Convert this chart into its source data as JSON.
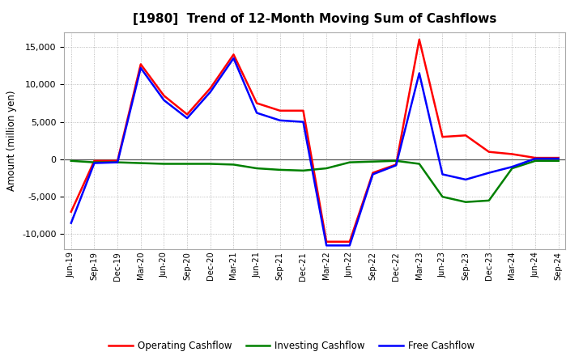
{
  "title": "[1980]  Trend of 12-Month Moving Sum of Cashflows",
  "ylabel": "Amount (million yen)",
  "background_color": "#ffffff",
  "grid_color": "#aaaaaa",
  "ylim": [
    -12000,
    17000
  ],
  "yticks": [
    -10000,
    -5000,
    0,
    5000,
    10000,
    15000
  ],
  "x_labels": [
    "Jun-19",
    "Sep-19",
    "Dec-19",
    "Mar-20",
    "Jun-20",
    "Sep-20",
    "Dec-20",
    "Mar-21",
    "Jun-21",
    "Sep-21",
    "Dec-21",
    "Mar-22",
    "Jun-22",
    "Sep-22",
    "Dec-22",
    "Mar-23",
    "Jun-23",
    "Sep-23",
    "Dec-23",
    "Mar-24",
    "Jun-24",
    "Sep-24"
  ],
  "operating": [
    -7000,
    -200,
    -200,
    12700,
    8500,
    6000,
    9500,
    14000,
    7500,
    6500,
    6500,
    -11000,
    -11000,
    -1800,
    -700,
    16000,
    3000,
    3200,
    1000,
    700,
    200,
    200
  ],
  "investing": [
    -200,
    -400,
    -400,
    -500,
    -600,
    -600,
    -600,
    -700,
    -1200,
    -1400,
    -1500,
    -1200,
    -400,
    -300,
    -200,
    -600,
    -5000,
    -5700,
    -5500,
    -1200,
    -200,
    -200
  ],
  "free": [
    -8500,
    -500,
    -400,
    12200,
    7900,
    5500,
    9000,
    13500,
    6200,
    5200,
    5000,
    -11500,
    -11500,
    -2000,
    -800,
    11500,
    -2000,
    -2700,
    -1800,
    -1000,
    100,
    100
  ],
  "operating_color": "#ff0000",
  "investing_color": "#008000",
  "free_color": "#0000ff",
  "line_width": 1.8
}
